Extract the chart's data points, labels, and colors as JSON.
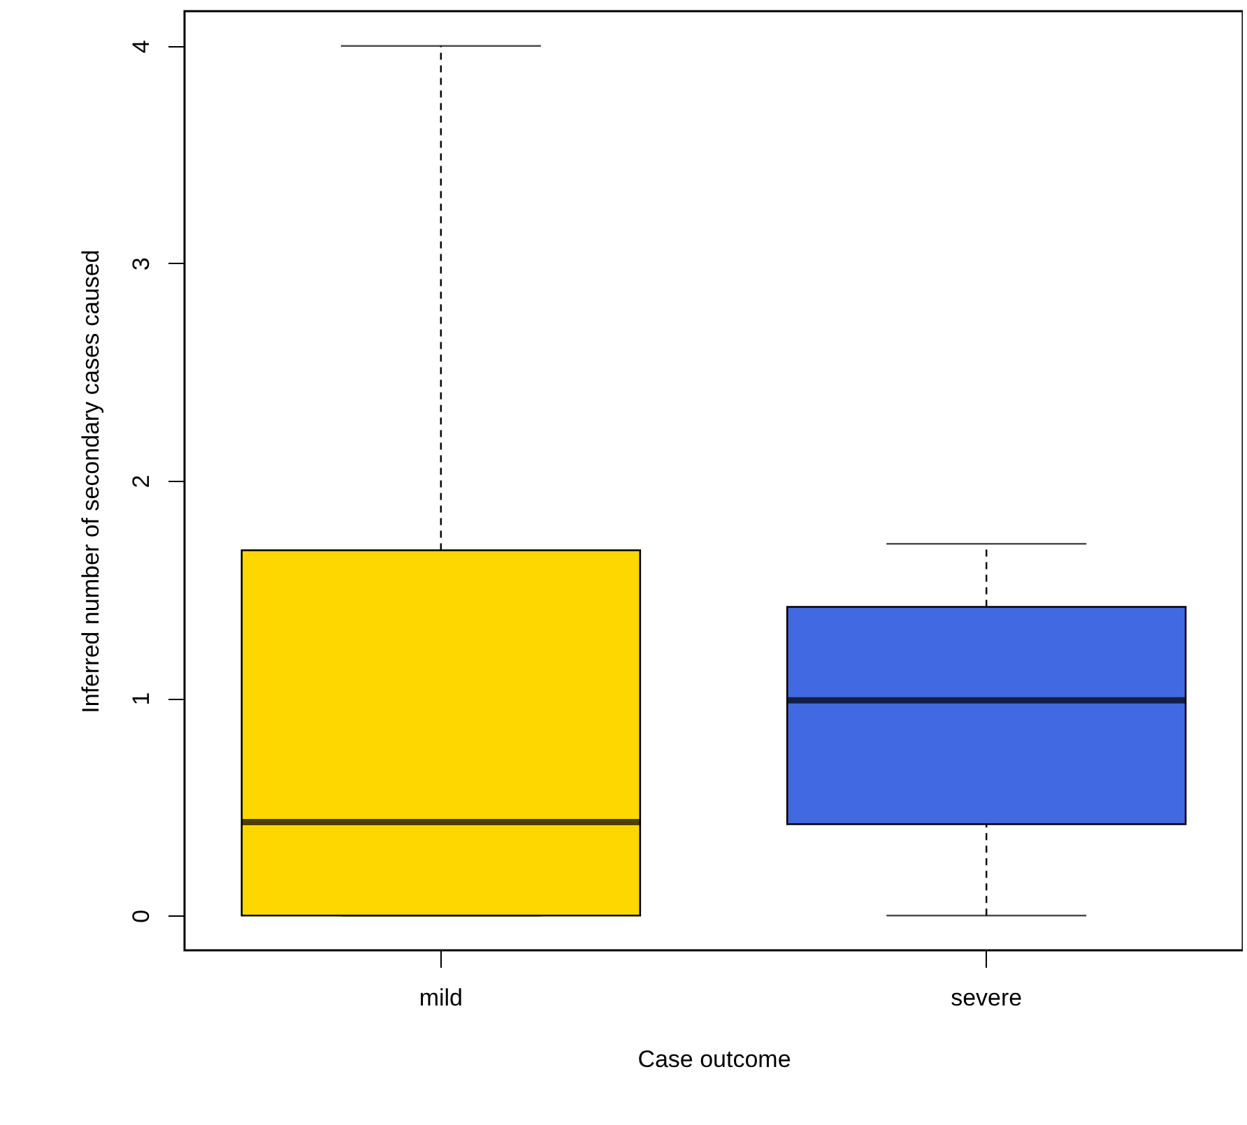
{
  "chart_data": {
    "type": "box",
    "xlabel": "Case outcome",
    "ylabel": "Inferred number of secondary cases caused",
    "categories": [
      "mild",
      "severe"
    ],
    "colors": [
      "#ffd700",
      "#4169e1"
    ],
    "boxes": [
      {
        "low": 0,
        "q1": 0,
        "median": 0.43,
        "q3": 1.68,
        "high": 4
      },
      {
        "low": 0,
        "q1": 0.42,
        "median": 0.99,
        "q3": 1.42,
        "high": 1.71
      }
    ],
    "ylim": [
      -0.16,
      4.16
    ],
    "yticks": [
      0,
      1,
      2,
      3,
      4
    ],
    "grid": false
  }
}
